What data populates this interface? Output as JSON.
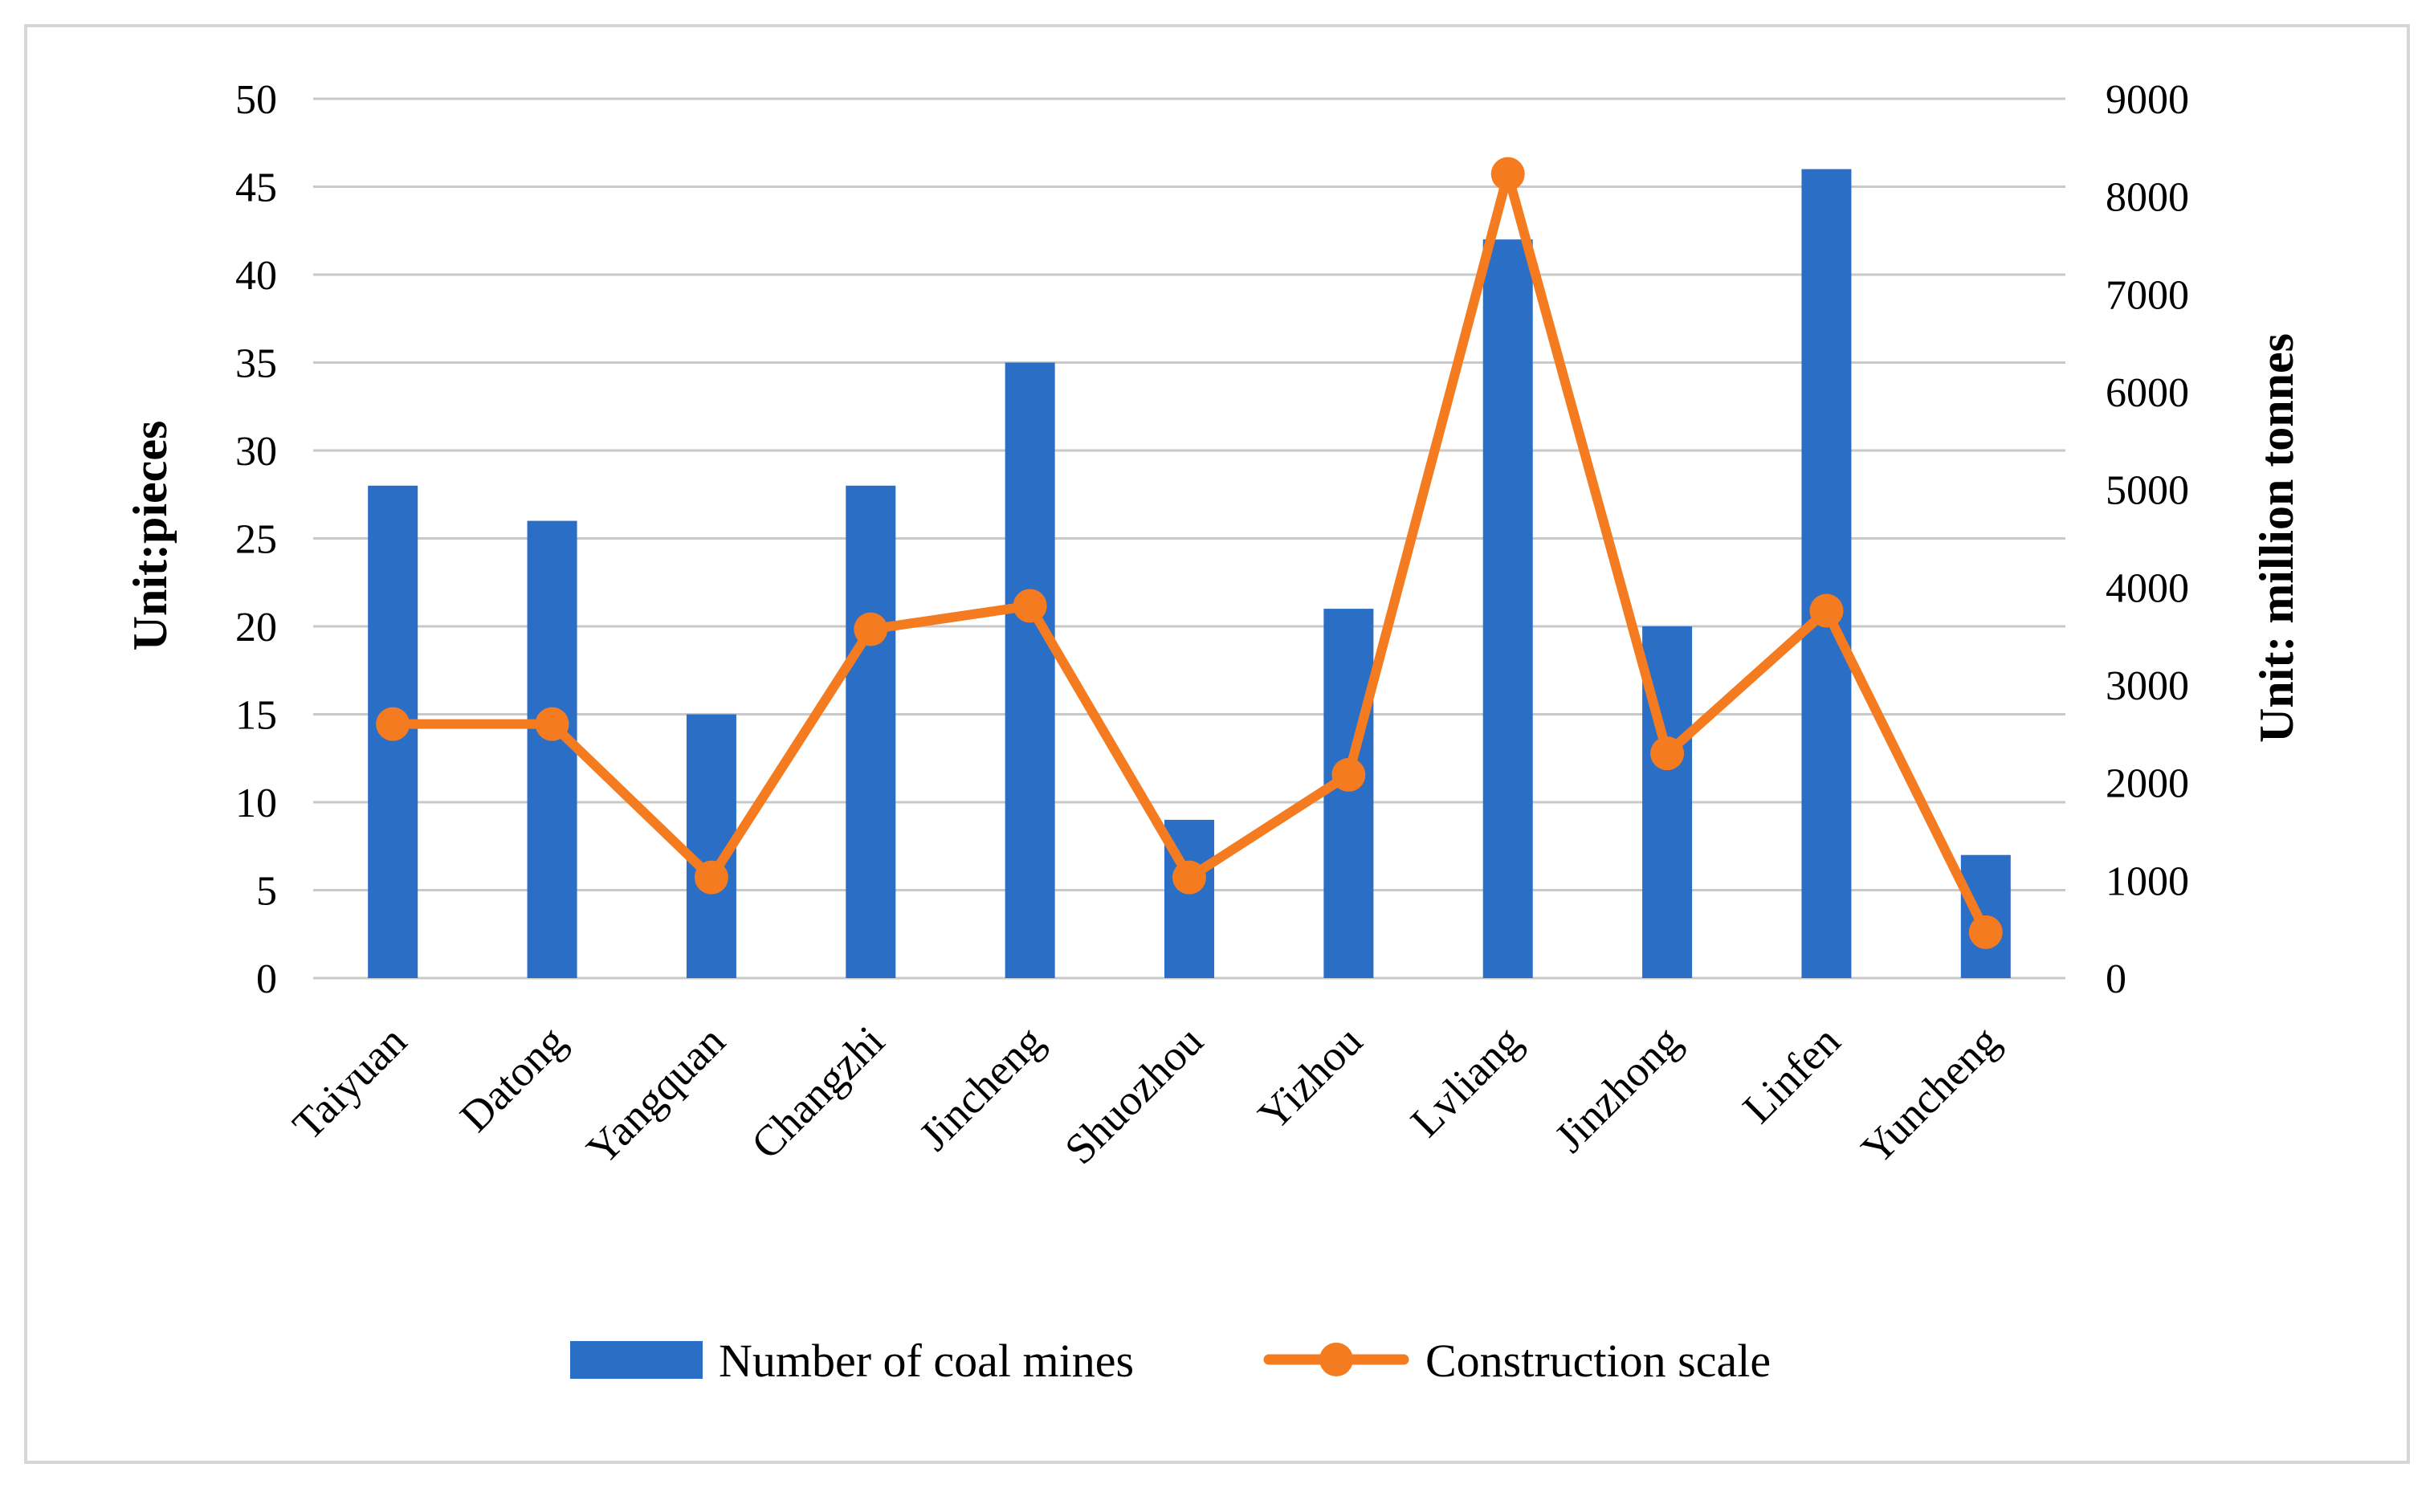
{
  "chart_data": {
    "type": "bar",
    "categories": [
      "Taiyuan",
      "Datong",
      "Yangquan",
      "Changzhi",
      "Jincheng",
      "Shuozhou",
      "Yizhou",
      "Lvliang",
      "Jinzhong",
      "Linfen",
      "Yuncheng"
    ],
    "series": [
      {
        "name": "Number of coal mines",
        "type": "bar",
        "axis": "left",
        "color": "#2a6ec6",
        "values": [
          28,
          26,
          15,
          28,
          35,
          9,
          21,
          42,
          20,
          46,
          7
        ]
      },
      {
        "name": "Construction scale",
        "type": "line",
        "axis": "right",
        "color": "#f47b20",
        "values": [
          2600,
          2600,
          1030,
          3570,
          3810,
          1030,
          2080,
          8230,
          2300,
          3760,
          470
        ]
      }
    ],
    "ylabel": "Unit:pieces",
    "y2label": "Unit: million tonnes",
    "ylim": [
      0,
      50
    ],
    "y2lim": [
      0,
      9000
    ],
    "yticks": [
      "0",
      "5",
      "10",
      "15",
      "20",
      "25",
      "30",
      "35",
      "40",
      "45",
      "50"
    ],
    "y2ticks": [
      "0",
      "1000",
      "2000",
      "3000",
      "4000",
      "5000",
      "6000",
      "7000",
      "8000",
      "9000"
    ],
    "grid": true,
    "legend": "bottom"
  }
}
